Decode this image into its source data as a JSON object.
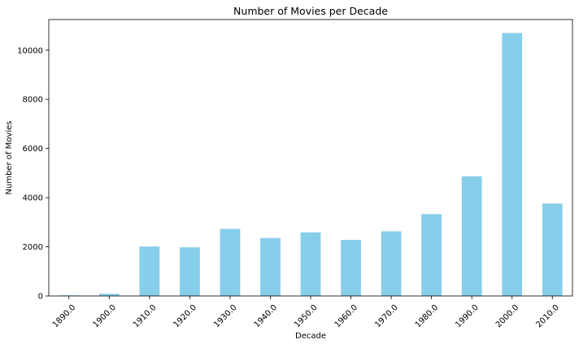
{
  "chart_data": {
    "type": "bar",
    "title": "Number of Movies per Decade",
    "xlabel": "Decade",
    "ylabel": "Number of Movies",
    "categories": [
      "1890.0",
      "1900.0",
      "1910.0",
      "1920.0",
      "1930.0",
      "1940.0",
      "1950.0",
      "1960.0",
      "1970.0",
      "1980.0",
      "1990.0",
      "2000.0",
      "2010.0"
    ],
    "values": [
      25,
      90,
      2010,
      1980,
      2730,
      2360,
      2590,
      2280,
      2630,
      3330,
      4870,
      10700,
      3760
    ],
    "ylim": [
      0,
      11250
    ],
    "yticks": [
      0,
      2000,
      4000,
      6000,
      8000,
      10000
    ],
    "grid": false,
    "legend": "none",
    "bar_color": "#87ceeb"
  }
}
